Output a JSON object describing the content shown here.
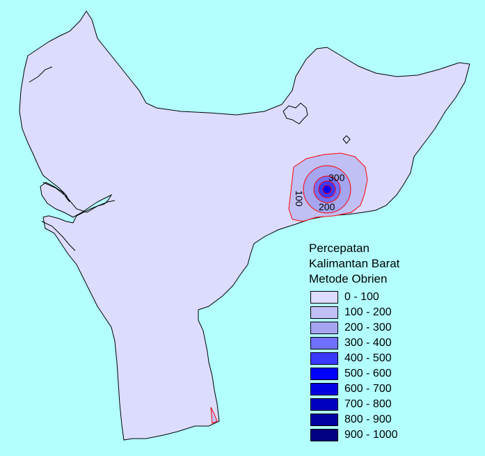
{
  "legend": {
    "title_lines": [
      "Percepatan",
      "Kalimantan Barat",
      "Metode Obrien"
    ],
    "classes": [
      {
        "label": "0 - 100",
        "color": "#dcdcff"
      },
      {
        "label": "100 - 200",
        "color": "#c0c0f5"
      },
      {
        "label": "200 - 300",
        "color": "#a5a5f0"
      },
      {
        "label": "300 - 400",
        "color": "#7070ff"
      },
      {
        "label": "400 - 500",
        "color": "#3a3aff"
      },
      {
        "label": "500 - 600",
        "color": "#0000ff"
      },
      {
        "label": "600 - 700",
        "color": "#0000e0"
      },
      {
        "label": "700 - 800",
        "color": "#0000c0"
      },
      {
        "label": "800 - 900",
        "color": "#0000a0"
      },
      {
        "label": "900 - 1000",
        "color": "#000080"
      }
    ]
  },
  "map": {
    "background_color": "#b3ffff",
    "land_color": "#dcdcff",
    "contour_line_color": "#ff0000",
    "contour_labels": [
      "300",
      "100",
      "200"
    ]
  }
}
